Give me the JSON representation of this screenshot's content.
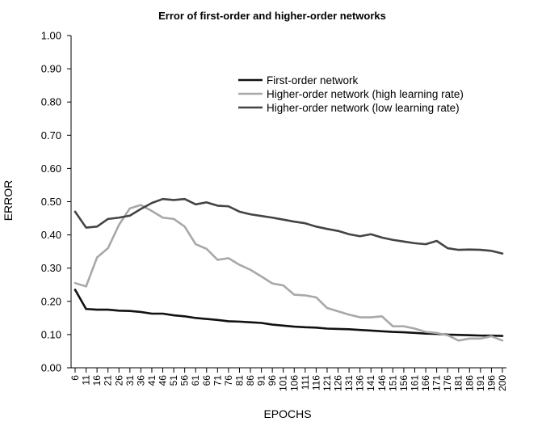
{
  "chart_data": {
    "type": "line",
    "title": "Error of first-order and higher-order networks",
    "xlabel": "EPOCHS",
    "ylabel": "ERROR",
    "ylim": [
      0,
      1
    ],
    "y_ticks": [
      "0.00",
      "0.10",
      "0.20",
      "0.30",
      "0.40",
      "0.50",
      "0.60",
      "0.70",
      "0.80",
      "0.90",
      "1.00"
    ],
    "grid": false,
    "legend_position": "top-right",
    "x": [
      "6",
      "11",
      "16",
      "21",
      "26",
      "31",
      "36",
      "41",
      "46",
      "51",
      "56",
      "61",
      "66",
      "71",
      "76",
      "81",
      "86",
      "91",
      "96",
      "101",
      "106",
      "111",
      "116",
      "121",
      "126",
      "131",
      "136",
      "141",
      "146",
      "151",
      "156",
      "161",
      "166",
      "171",
      "176",
      "181",
      "186",
      "191",
      "196",
      "200"
    ],
    "series": [
      {
        "name": "First-order network",
        "color": "#111111",
        "values": [
          0.235,
          0.177,
          0.175,
          0.175,
          0.172,
          0.171,
          0.168,
          0.163,
          0.163,
          0.158,
          0.155,
          0.15,
          0.147,
          0.144,
          0.14,
          0.139,
          0.137,
          0.135,
          0.13,
          0.127,
          0.124,
          0.122,
          0.121,
          0.118,
          0.117,
          0.116,
          0.114,
          0.112,
          0.11,
          0.108,
          0.107,
          0.105,
          0.103,
          0.102,
          0.1,
          0.099,
          0.098,
          0.097,
          0.097,
          0.096
        ]
      },
      {
        "name": "Higher-order network (high learning rate)",
        "color": "#a8a8a8",
        "values": [
          0.255,
          0.245,
          0.332,
          0.36,
          0.43,
          0.48,
          0.49,
          0.472,
          0.452,
          0.448,
          0.425,
          0.372,
          0.358,
          0.325,
          0.33,
          0.31,
          0.295,
          0.275,
          0.254,
          0.248,
          0.22,
          0.218,
          0.212,
          0.18,
          0.17,
          0.16,
          0.152,
          0.152,
          0.155,
          0.125,
          0.125,
          0.118,
          0.108,
          0.105,
          0.098,
          0.082,
          0.088,
          0.088,
          0.095,
          0.082
        ]
      },
      {
        "name": "Higher-order network (low learning rate)",
        "color": "#444444",
        "values": [
          0.47,
          0.422,
          0.425,
          0.448,
          0.452,
          0.458,
          0.478,
          0.496,
          0.508,
          0.505,
          0.508,
          0.492,
          0.498,
          0.488,
          0.486,
          0.47,
          0.462,
          0.457,
          0.452,
          0.446,
          0.44,
          0.435,
          0.425,
          0.418,
          0.412,
          0.402,
          0.396,
          0.402,
          0.392,
          0.385,
          0.38,
          0.375,
          0.372,
          0.382,
          0.36,
          0.355,
          0.356,
          0.355,
          0.352,
          0.344
        ]
      }
    ]
  }
}
